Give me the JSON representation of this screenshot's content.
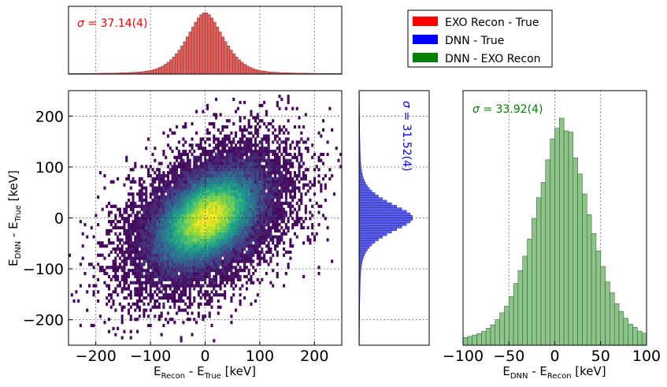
{
  "chart_data": [
    {
      "id": "top",
      "type": "histogram",
      "series_name": "EXO Recon - True",
      "color": "#e0605c",
      "annotation": {
        "symbol": "σ",
        "text": " =  37.14(4)",
        "color": "#ff0000"
      },
      "x_range": [
        -250,
        250
      ],
      "sigma": 37.14,
      "bin_width": 5
    },
    {
      "id": "scatter",
      "type": "heatmap",
      "xlabel": {
        "main": "E",
        "sub1": "Recon",
        "mid": " - E",
        "sub2": "True",
        "unit": " [keV]"
      },
      "ylabel": {
        "main": "E",
        "sub1": "DNN",
        "mid": " - E",
        "sub2": "True",
        "unit": " [keV]"
      },
      "x_range": [
        -250,
        250
      ],
      "y_range": [
        -250,
        250
      ],
      "x_ticks": [
        "−200",
        "−100",
        "0",
        "100",
        "200"
      ],
      "y_ticks": [
        "200",
        "100",
        "0",
        "−100",
        "−200"
      ],
      "x_tick_values": [
        -200,
        -100,
        0,
        100,
        200
      ],
      "y_tick_values": [
        200,
        100,
        0,
        -100,
        -200
      ],
      "center": [
        5,
        0
      ],
      "sigma_x": 37.14,
      "sigma_y": 31.52,
      "correlation": 0.42,
      "colormap": "viridis"
    },
    {
      "id": "right-marginal",
      "type": "histogram",
      "orientation": "horizontal",
      "series_name": "DNN - True",
      "color": "#5a5ef0",
      "annotation": {
        "symbol": "σ",
        "text": " =  31.52(4)",
        "color": "#0000ff"
      },
      "y_range": [
        -250,
        250
      ],
      "sigma": 31.52,
      "bin_width": 5
    },
    {
      "id": "diff",
      "type": "histogram",
      "series_name": "DNN - EXO Recon",
      "color": "#8cc48a",
      "annotation": {
        "symbol": "σ",
        "text": " =  33.92(4)",
        "color": "#008000"
      },
      "xlabel": {
        "main": "E",
        "sub1": "DNN",
        "mid": " - E",
        "sub2": "Recon",
        "unit": " [keV]"
      },
      "x_range": [
        -100,
        100
      ],
      "x_ticks": [
        "−100",
        "−50",
        "0",
        "50",
        "100"
      ],
      "x_tick_values": [
        -100,
        -50,
        0,
        50,
        100
      ],
      "sigma": 33.92,
      "bin_width": 5
    }
  ],
  "legend": {
    "items": [
      {
        "label": "EXO Recon - True",
        "color": "#ff0000"
      },
      {
        "label": "DNN - True",
        "color": "#0000ff"
      },
      {
        "label": "DNN - EXO Recon",
        "color": "#008000"
      }
    ]
  }
}
